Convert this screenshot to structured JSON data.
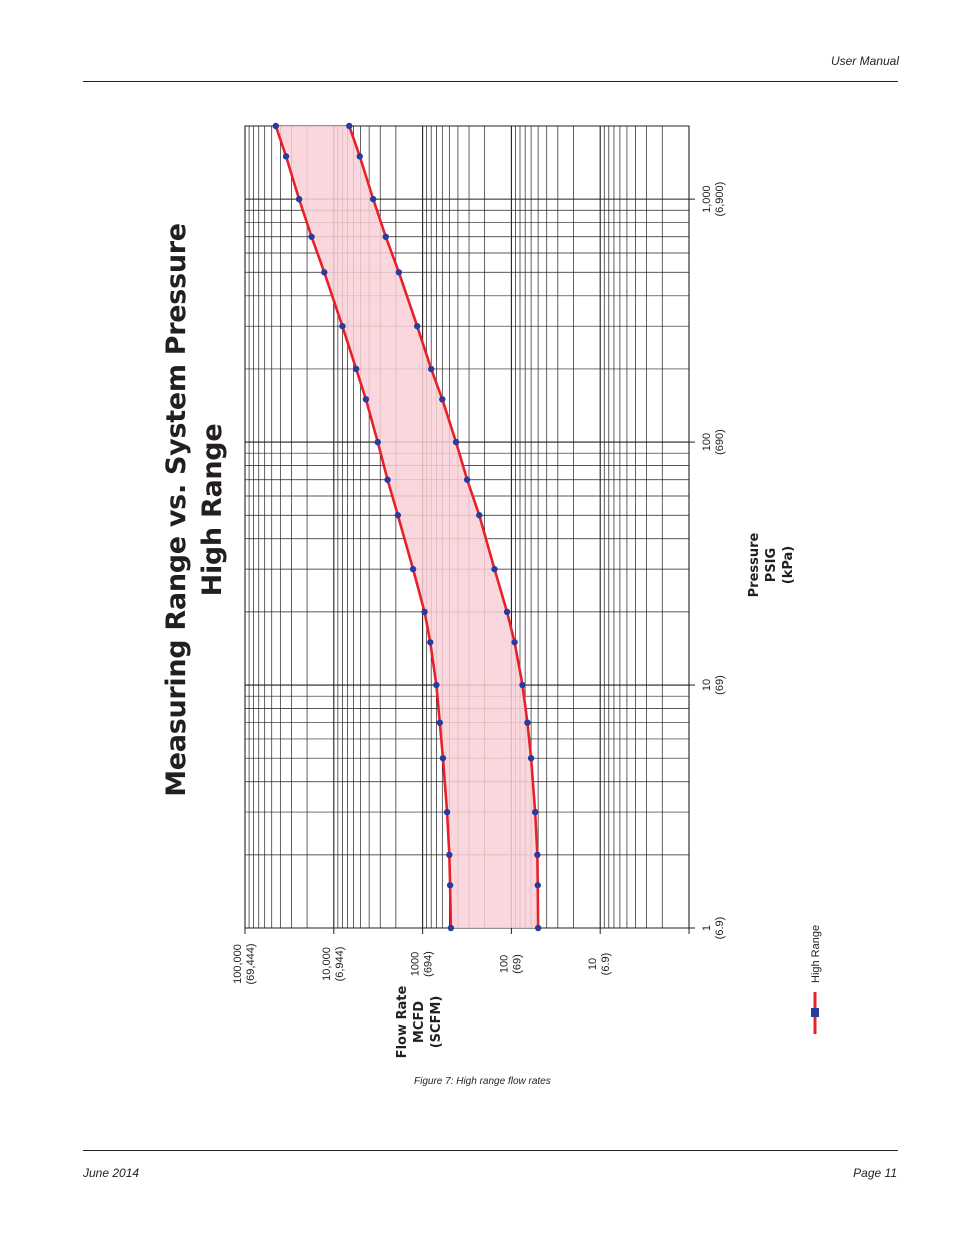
{
  "header": {
    "doc_label": "User Manual"
  },
  "footer": {
    "date": "June 2014",
    "page": "Page 11"
  },
  "figure": {
    "caption": "Figure 7:  High range flow rates"
  },
  "chart_data": {
    "type": "line",
    "title": "Measuring Range vs. System Pressure",
    "subtitle": "High Range",
    "x_axis": {
      "scale": "log",
      "range": [
        1,
        2000
      ],
      "label_lines": [
        "Pressure",
        "PSIG",
        "(kPa)"
      ],
      "ticks": [
        {
          "value": 1,
          "label": "1",
          "sublabel": "(6.9)"
        },
        {
          "value": 10,
          "label": "10",
          "sublabel": "(69)"
        },
        {
          "value": 100,
          "label": "100",
          "sublabel": "(690)"
        },
        {
          "value": 1000,
          "label": "1,000",
          "sublabel": "(6,900)"
        }
      ]
    },
    "y_axis": {
      "scale": "log",
      "range": [
        1,
        100000
      ],
      "label_lines": [
        "Flow Rate",
        "MCFD",
        "(SCFM)"
      ],
      "ticks": [
        {
          "value": 100000,
          "label": "100,000",
          "sublabel": "(69,444)"
        },
        {
          "value": 10000,
          "label": "10,000",
          "sublabel": "(6,944)"
        },
        {
          "value": 1000,
          "label": "1000",
          "sublabel": "(694)"
        },
        {
          "value": 100,
          "label": "100",
          "sublabel": "(69)"
        },
        {
          "value": 10,
          "label": "10",
          "sublabel": "(6.9)"
        },
        {
          "value": 1,
          "label": "",
          "sublabel": ""
        }
      ]
    },
    "grid": true,
    "legend": {
      "position": "bottom",
      "entries": [
        "High Range"
      ]
    },
    "colors": {
      "line": "#e8202a",
      "marker": "#2b3a9e",
      "fill": "#f9d0d6"
    },
    "series": [
      {
        "name": "High Range",
        "role": "upper",
        "x": [
          1,
          1.5,
          2,
          3,
          5,
          7,
          10,
          15,
          20,
          30,
          50,
          70,
          100,
          150,
          200,
          300,
          500,
          700,
          1000,
          1500,
          2000
        ],
        "y": [
          480,
          490,
          500,
          530,
          590,
          640,
          700,
          820,
          950,
          1280,
          1900,
          2480,
          3200,
          4350,
          5600,
          8000,
          12800,
          17800,
          24600,
          34500,
          45000
        ]
      },
      {
        "name": "High Range",
        "role": "lower",
        "x": [
          1,
          1.5,
          2,
          3,
          5,
          7,
          10,
          15,
          20,
          30,
          50,
          70,
          100,
          150,
          200,
          300,
          500,
          700,
          1000,
          1500,
          2000
        ],
        "y": [
          50,
          50.5,
          51,
          54,
          60,
          66,
          75,
          92,
          112,
          155,
          230,
          315,
          420,
          600,
          800,
          1150,
          1850,
          2600,
          3600,
          5100,
          6700
        ]
      }
    ]
  }
}
